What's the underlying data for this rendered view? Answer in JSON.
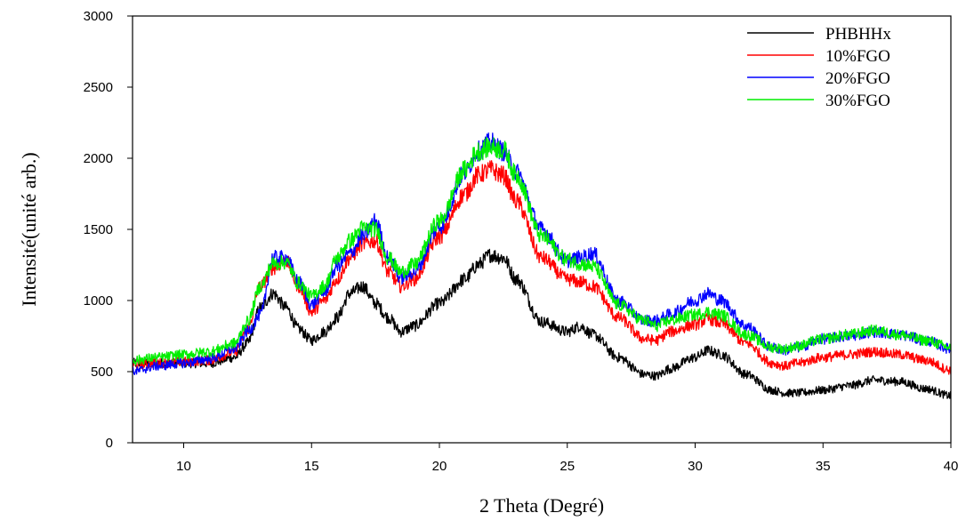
{
  "chart_data": {
    "type": "line",
    "title": "",
    "xlabel": "2 Theta (Degré)",
    "ylabel": "Intensité(unité arb.)",
    "xlim": [
      8,
      40
    ],
    "ylim": [
      0,
      3000
    ],
    "x_ticks": [
      10,
      15,
      20,
      25,
      30,
      35,
      40
    ],
    "y_ticks": [
      0,
      500,
      1000,
      1500,
      2000,
      2500,
      3000
    ],
    "grid": false,
    "legend_position": "top-right",
    "x": [
      8,
      9,
      10,
      11,
      12,
      12.5,
      13,
      13.5,
      14,
      14.5,
      15,
      15.5,
      16,
      16.5,
      17,
      17.5,
      18,
      18.5,
      19,
      20,
      21,
      21.5,
      22,
      22.5,
      23,
      24,
      25,
      25.5,
      26,
      27,
      28,
      28.5,
      29,
      30,
      30.5,
      31,
      32,
      33,
      33.5,
      34,
      35,
      36,
      37,
      38,
      39,
      40
    ],
    "series": [
      {
        "name": "PHBHHx",
        "color": "#000000",
        "values": [
          560,
          560,
          560,
          560,
          600,
          700,
          950,
          1050,
          950,
          800,
          720,
          780,
          880,
          1050,
          1100,
          980,
          880,
          780,
          820,
          980,
          1150,
          1250,
          1320,
          1300,
          1150,
          850,
          780,
          820,
          760,
          600,
          480,
          470,
          520,
          600,
          650,
          620,
          480,
          370,
          350,
          350,
          370,
          400,
          440,
          430,
          380,
          330
        ]
      },
      {
        "name": "10%FGO",
        "color": "#ff0000",
        "values": [
          550,
          560,
          570,
          580,
          640,
          800,
          1100,
          1230,
          1280,
          1100,
          920,
          1000,
          1150,
          1300,
          1400,
          1420,
          1200,
          1100,
          1150,
          1450,
          1750,
          1880,
          1920,
          1880,
          1700,
          1300,
          1150,
          1130,
          1100,
          880,
          730,
          720,
          780,
          830,
          870,
          840,
          700,
          560,
          540,
          560,
          600,
          620,
          640,
          620,
          580,
          510
        ]
      },
      {
        "name": "20%FGO",
        "color": "#0000ff",
        "values": [
          500,
          540,
          560,
          590,
          660,
          780,
          900,
          1300,
          1300,
          1130,
          970,
          1060,
          1240,
          1330,
          1450,
          1560,
          1300,
          1160,
          1200,
          1520,
          1900,
          2050,
          2110,
          2050,
          1900,
          1500,
          1280,
          1300,
          1330,
          1000,
          860,
          860,
          900,
          1000,
          1050,
          1000,
          820,
          670,
          650,
          670,
          730,
          750,
          780,
          760,
          720,
          660
        ]
      },
      {
        "name": "30%FGO",
        "color": "#00ee00",
        "values": [
          580,
          600,
          620,
          640,
          700,
          850,
          1100,
          1260,
          1270,
          1120,
          1030,
          1100,
          1300,
          1420,
          1510,
          1500,
          1300,
          1200,
          1250,
          1560,
          1920,
          2050,
          2080,
          2060,
          1880,
          1450,
          1290,
          1260,
          1240,
          970,
          860,
          820,
          860,
          900,
          920,
          900,
          760,
          670,
          660,
          680,
          730,
          760,
          790,
          760,
          720,
          670
        ]
      }
    ]
  }
}
